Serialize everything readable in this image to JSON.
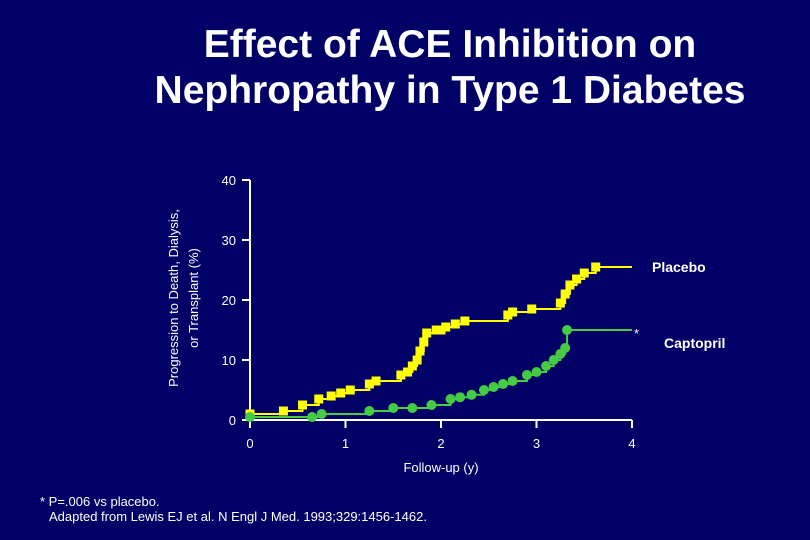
{
  "title_lines": [
    "Effect of ACE Inhibition on",
    "Nephropathy in Type 1 Diabetes"
  ],
  "colors": {
    "background": "#000066",
    "text": "#ffffff",
    "placebo": "#ffff00",
    "captopril": "#44cc44"
  },
  "chart_data": {
    "type": "line",
    "title": "Effect of ACE Inhibition on Nephropathy in Type 1 Diabetes",
    "xlabel": "Follow-up (y)",
    "ylabel_lines": [
      "Progression to Death, Dialysis,",
      "or Transplant (%)"
    ],
    "xlim": [
      0,
      4
    ],
    "ylim": [
      0,
      40
    ],
    "x_ticks": [
      "0",
      "1",
      "2",
      "3",
      "4"
    ],
    "y_ticks": [
      "0",
      "10",
      "20",
      "30",
      "40"
    ],
    "grid": false,
    "series": [
      {
        "name": "Placebo",
        "marker": "square",
        "step": true,
        "points": [
          [
            0.0,
            1.0
          ],
          [
            0.35,
            1.5
          ],
          [
            0.55,
            2.5
          ],
          [
            0.72,
            3.5
          ],
          [
            0.85,
            4.0
          ],
          [
            0.95,
            4.5
          ],
          [
            1.05,
            5.0
          ],
          [
            1.25,
            6.0
          ],
          [
            1.32,
            6.5
          ],
          [
            1.58,
            7.5
          ],
          [
            1.65,
            8.0
          ],
          [
            1.7,
            9.0
          ],
          [
            1.75,
            10.0
          ],
          [
            1.78,
            11.5
          ],
          [
            1.82,
            13.0
          ],
          [
            1.85,
            14.5
          ],
          [
            1.95,
            15.0
          ],
          [
            2.0,
            15.0
          ],
          [
            2.05,
            15.5
          ],
          [
            2.15,
            16.0
          ],
          [
            2.25,
            16.5
          ],
          [
            2.7,
            17.5
          ],
          [
            2.75,
            18.0
          ],
          [
            2.95,
            18.5
          ],
          [
            3.25,
            19.5
          ],
          [
            3.3,
            21.0
          ],
          [
            3.35,
            22.5
          ],
          [
            3.42,
            23.5
          ],
          [
            3.5,
            24.5
          ],
          [
            3.62,
            25.5
          ],
          [
            4.0,
            25.5
          ]
        ]
      },
      {
        "name": "Captopril",
        "marker": "circle",
        "step": true,
        "annotation": "*",
        "points": [
          [
            0.0,
            0.5
          ],
          [
            0.65,
            0.5
          ],
          [
            0.75,
            1.0
          ],
          [
            1.25,
            1.5
          ],
          [
            1.5,
            2.0
          ],
          [
            1.7,
            2.0
          ],
          [
            1.9,
            2.5
          ],
          [
            2.1,
            3.5
          ],
          [
            2.2,
            3.8
          ],
          [
            2.32,
            4.2
          ],
          [
            2.45,
            5.0
          ],
          [
            2.55,
            5.5
          ],
          [
            2.65,
            6.0
          ],
          [
            2.75,
            6.5
          ],
          [
            2.9,
            7.5
          ],
          [
            3.0,
            8.0
          ],
          [
            3.1,
            9.0
          ],
          [
            3.18,
            10.0
          ],
          [
            3.25,
            11.0
          ],
          [
            3.3,
            12.0
          ],
          [
            3.32,
            15.0
          ],
          [
            4.0,
            15.0
          ]
        ]
      }
    ]
  },
  "footnote": {
    "significance": "* P=.006 vs placebo.",
    "source": "Adapted from Lewis EJ et al. N Engl J Med. 1993;329:1456-1462."
  }
}
